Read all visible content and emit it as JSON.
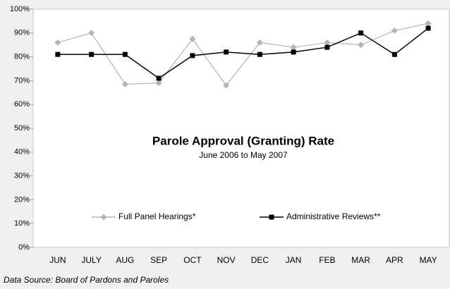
{
  "chart_data": {
    "type": "line",
    "title": "Parole Approval (Granting) Rate",
    "subtitle": "June 2006 to May 2007",
    "source": "Data Source: Board of Pardons and Paroles",
    "categories": [
      "JUN",
      "JULY",
      "AUG",
      "SEP",
      "OCT",
      "NOV",
      "DEC",
      "JAN",
      "FEB",
      "MAR",
      "APR",
      "MAY"
    ],
    "series": [
      {
        "name": "Full Panel Hearings*",
        "color": "#b4b4b4",
        "marker": "diamond",
        "values": [
          86,
          90,
          68.5,
          69,
          87.5,
          68,
          86,
          84,
          86,
          85,
          91,
          94
        ]
      },
      {
        "name": "Administrative Reviews**",
        "color": "#000000",
        "marker": "square",
        "values": [
          81,
          81,
          81,
          71,
          80.5,
          82,
          81,
          82,
          84,
          90,
          81,
          92
        ]
      }
    ],
    "ylim": [
      0,
      100
    ],
    "yticks": [
      {
        "value": 0,
        "label": "0%"
      },
      {
        "value": 10,
        "label": "10%"
      },
      {
        "value": 20,
        "label": "20%"
      },
      {
        "value": 30,
        "label": "30%"
      },
      {
        "value": 40,
        "label": "40%"
      },
      {
        "value": 50,
        "label": "50%"
      },
      {
        "value": 60,
        "label": "60%"
      },
      {
        "value": 70,
        "label": "70%"
      },
      {
        "value": 80,
        "label": "80%"
      },
      {
        "value": 90,
        "label": "90%"
      },
      {
        "value": 100,
        "label": "100%"
      }
    ],
    "grid": false,
    "legend": "bottom"
  }
}
